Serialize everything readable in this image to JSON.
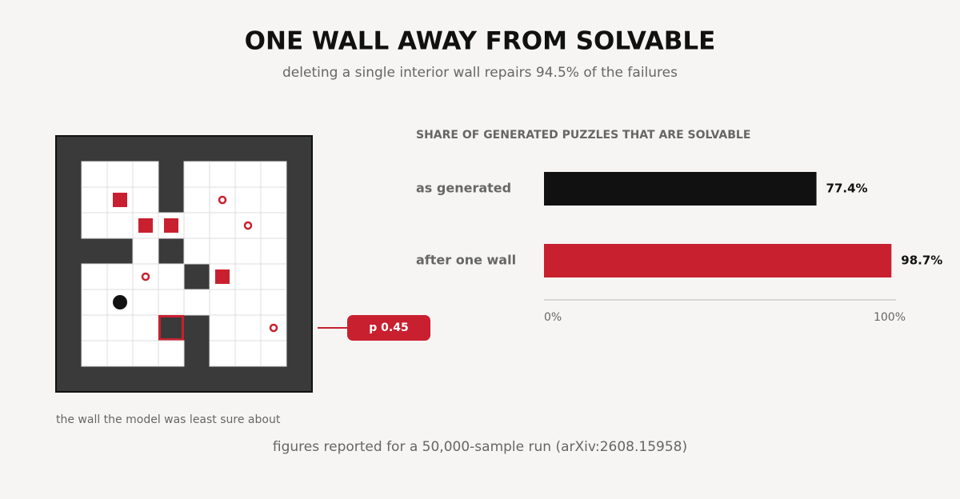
{
  "title": "ONE WALL AWAY FROM SOLVABLE",
  "subtitle": "deleting a single interior wall repairs 94.5% of the failures",
  "callout": "p 0.45",
  "caption": "the wall the model was least sure about",
  "footer": "figures reported for a 50,000-sample run (arXiv:2608.15958)",
  "chart_data": {
    "type": "bar",
    "orientation": "horizontal",
    "title": "SHARE OF GENERATED PUZZLES THAT ARE SOLVABLE",
    "categories": [
      "as generated",
      "after one wall"
    ],
    "values": [
      77.4,
      98.7
    ],
    "value_labels": [
      "77.4%",
      "98.7%"
    ],
    "colors": [
      "#111111",
      "#c8202f"
    ],
    "xlim": [
      0,
      100
    ],
    "xticks": [
      {
        "value": 0,
        "label": "0%"
      },
      {
        "value": 100,
        "label": "100%"
      }
    ]
  }
}
